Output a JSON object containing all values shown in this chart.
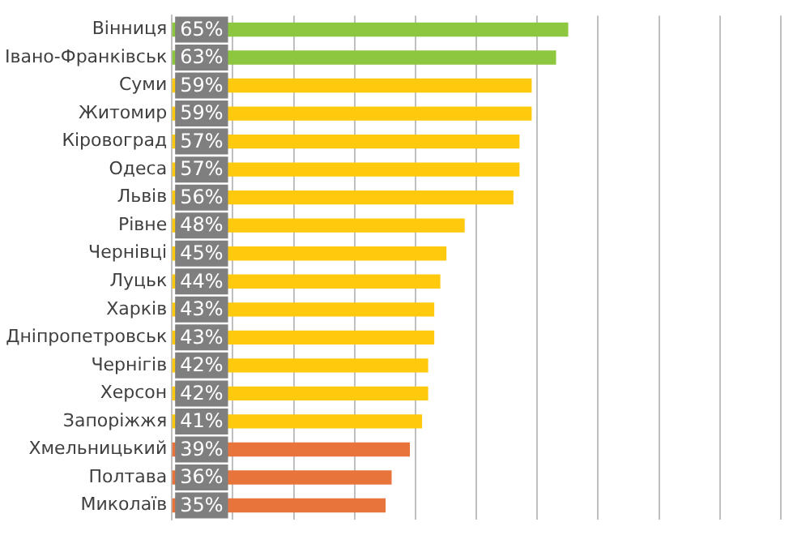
{
  "chart_data": {
    "type": "bar",
    "orientation": "horizontal",
    "categories": [
      "Вінниця",
      "Івано-Франківськ",
      "Суми",
      "Житомир",
      "Кіровоград",
      "Одеса",
      "Львів",
      "Рівне",
      "Чернівці",
      "Луцьк",
      "Харків",
      "Дніпропетровськ",
      "Чернігів",
      "Херсон",
      "Запоріжжя",
      "Хмельницький",
      "Полтава",
      "Миколаїв"
    ],
    "values": [
      65,
      63,
      59,
      59,
      57,
      57,
      56,
      48,
      45,
      44,
      43,
      43,
      42,
      42,
      41,
      39,
      36,
      35
    ],
    "value_labels": [
      "65%",
      "63%",
      "59%",
      "59%",
      "57%",
      "57%",
      "56%",
      "48%",
      "45%",
      "44%",
      "43%",
      "43%",
      "42%",
      "42%",
      "41%",
      "39%",
      "36%",
      "35%"
    ],
    "colors": [
      "#8dc63f",
      "#8dc63f",
      "#ffc90e",
      "#ffc90e",
      "#ffc90e",
      "#ffc90e",
      "#ffc90e",
      "#ffc90e",
      "#ffc90e",
      "#ffc90e",
      "#ffc90e",
      "#ffc90e",
      "#ffc90e",
      "#ffc90e",
      "#ffc90e",
      "#e8743b",
      "#e8743b",
      "#e8743b"
    ],
    "xlim": [
      0,
      100
    ],
    "xticks": [
      {
        "value": 0,
        "label": null
      },
      {
        "value": 10,
        "label": null
      },
      {
        "value": 20,
        "label": null
      },
      {
        "value": 30,
        "label": null
      },
      {
        "value": 40,
        "label": null
      },
      {
        "value": 50,
        "label": null
      },
      {
        "value": 60,
        "label": null
      },
      {
        "value": 70,
        "label": null
      },
      {
        "value": 80,
        "label": null
      },
      {
        "value": 90,
        "label": null
      },
      {
        "value": 100,
        "label": null
      }
    ],
    "grid": "x",
    "legend": false,
    "tick_labels": "y"
  }
}
